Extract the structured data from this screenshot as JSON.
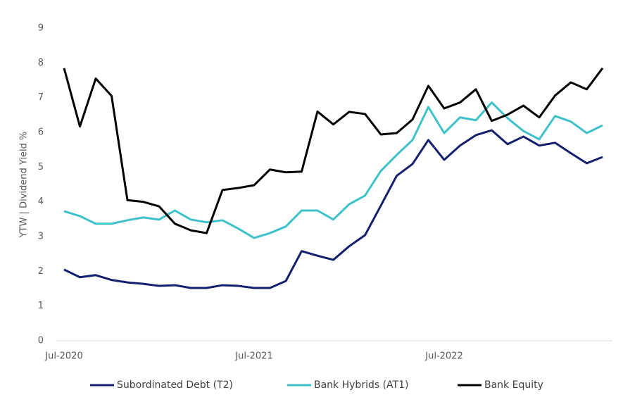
{
  "chart_data": {
    "type": "line",
    "y_label": "YTW | Dividend Yield %",
    "categories": [
      "Jul-2020",
      null,
      null,
      null,
      null,
      null,
      null,
      null,
      null,
      null,
      null,
      null,
      "Jul-2021",
      null,
      null,
      null,
      null,
      null,
      null,
      null,
      null,
      null,
      null,
      null,
      "Jul-2022",
      null,
      null,
      null,
      null,
      null,
      null,
      null,
      null,
      null,
      null
    ],
    "ylim": [
      0,
      9
    ],
    "yticks": [
      0,
      1,
      2,
      3,
      4,
      5,
      6,
      7,
      8,
      9
    ],
    "series": [
      {
        "name": "Subordinated Debt (T2)",
        "color": "#14206e",
        "values": [
          2.05,
          1.83,
          1.89,
          1.75,
          1.68,
          1.64,
          1.58,
          1.6,
          1.52,
          1.52,
          1.6,
          1.58,
          1.52,
          1.52,
          1.72,
          2.58,
          2.45,
          2.33,
          2.72,
          3.04,
          3.89,
          4.75,
          5.09,
          5.78,
          5.21,
          5.62,
          5.92,
          6.06,
          5.66,
          5.88,
          5.62,
          5.7,
          5.4,
          5.11,
          5.29
        ]
      },
      {
        "name": "Bank Hybrids (AT1)",
        "color": "#3fc1c9",
        "values": [
          3.73,
          3.59,
          3.37,
          3.37,
          3.47,
          3.55,
          3.49,
          3.75,
          3.49,
          3.41,
          3.47,
          3.23,
          2.96,
          3.1,
          3.29,
          3.75,
          3.75,
          3.49,
          3.93,
          4.18,
          4.89,
          5.35,
          5.78,
          6.73,
          5.98,
          6.43,
          6.35,
          6.86,
          6.41,
          6.04,
          5.8,
          6.47,
          6.31,
          5.98,
          6.2
        ]
      },
      {
        "name": "Bank Equity",
        "color": "#000000",
        "values": [
          7.85,
          6.17,
          7.55,
          7.05,
          4.05,
          4.0,
          3.87,
          3.37,
          3.18,
          3.1,
          4.34,
          4.4,
          4.48,
          4.93,
          4.85,
          4.87,
          6.6,
          6.23,
          6.59,
          6.53,
          5.94,
          5.98,
          6.37,
          7.34,
          6.69,
          6.86,
          7.24,
          6.33,
          6.51,
          6.77,
          6.43,
          7.06,
          7.44,
          7.24,
          7.85
        ]
      }
    ]
  }
}
